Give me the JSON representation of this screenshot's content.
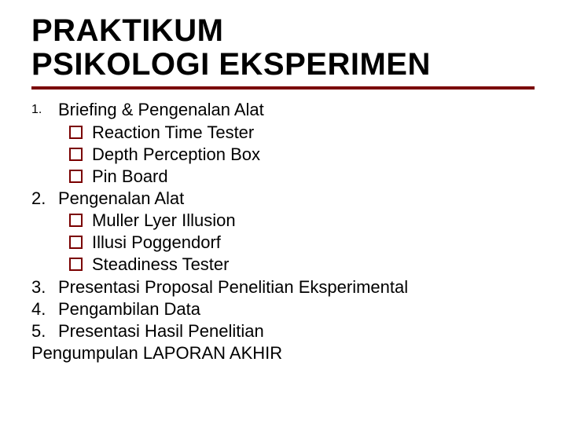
{
  "colors": {
    "ruleColor": "#7a0000",
    "bulletBorder": "#7a0000",
    "text": "#000000",
    "background": "#ffffff"
  },
  "typography": {
    "titleFontSize": 40,
    "bodyFontSize": 22,
    "fontFamily": "Verdana"
  },
  "title": {
    "line1": "PRAKTIKUM",
    "line2": "PSIKOLOGI EKSPERIMEN"
  },
  "content": {
    "item1": {
      "num": "1.",
      "text": "Briefing & Pengenalan Alat"
    },
    "item1_subs": {
      "a": "Reaction Time Tester",
      "b": "Depth Perception Box",
      "c": "Pin Board"
    },
    "item2": {
      "num": "2.",
      "text": "Pengenalan Alat"
    },
    "item2_subs": {
      "a": "Muller Lyer Illusion",
      "b": "Illusi Poggendorf",
      "c": "Steadiness Tester"
    },
    "item3": {
      "num": "3.",
      "text": "Presentasi Proposal Penelitian Eksperimental"
    },
    "item4": {
      "num": "4.",
      "text": "Pengambilan Data"
    },
    "item5": {
      "num": "5.",
      "text": "Presentasi Hasil Penelitian"
    },
    "final": "Pengumpulan LAPORAN AKHIR"
  }
}
